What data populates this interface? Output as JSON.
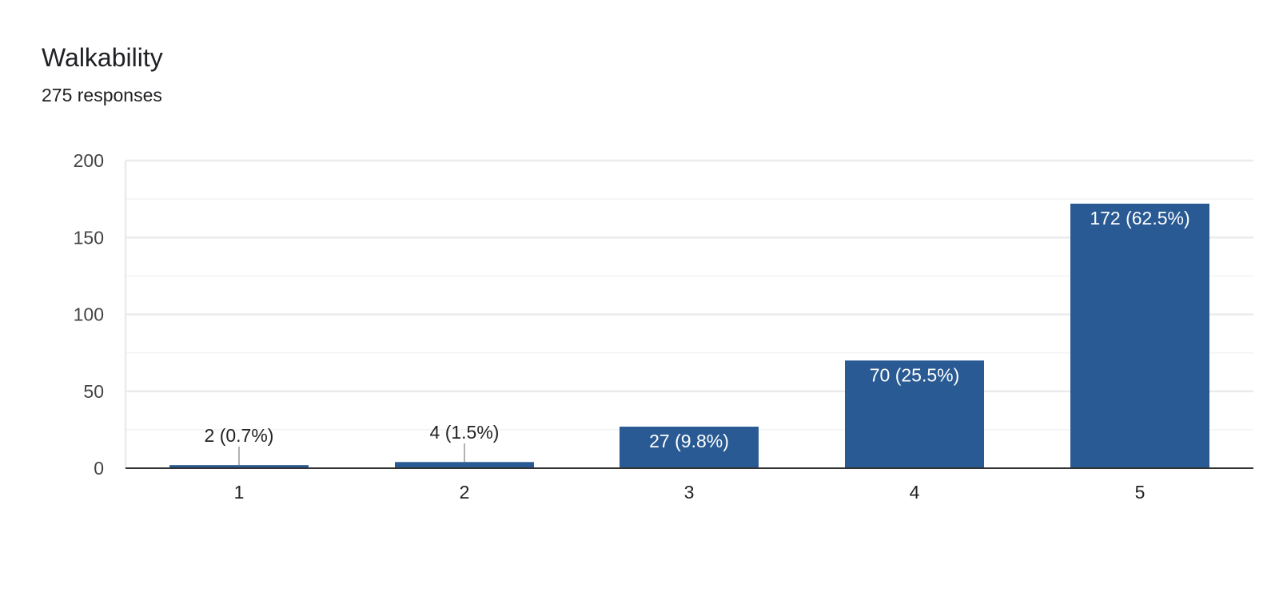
{
  "header": {
    "title": "Walkability",
    "subtitle": "275 responses"
  },
  "colors": {
    "bar": "#295a93",
    "grid_major": "#ebebeb",
    "grid_minor": "#f3f3f3",
    "axis": "#333333",
    "tick_text": "#444444",
    "label_dark": "#222222",
    "label_light": "#ffffff",
    "leader": "#999999"
  },
  "chart_data": {
    "type": "bar",
    "categories": [
      "1",
      "2",
      "3",
      "4",
      "5"
    ],
    "values": [
      2,
      4,
      27,
      70,
      172
    ],
    "data_labels": [
      "2 (0.7%)",
      "4 (1.5%)",
      "27 (9.8%)",
      "70 (25.5%)",
      "172 (62.5%)"
    ],
    "yticks": [
      "0",
      "50",
      "100",
      "150",
      "200"
    ],
    "ylim": [
      0,
      200
    ],
    "grid": true,
    "title": "Walkability",
    "xlabel": "",
    "ylabel": ""
  }
}
